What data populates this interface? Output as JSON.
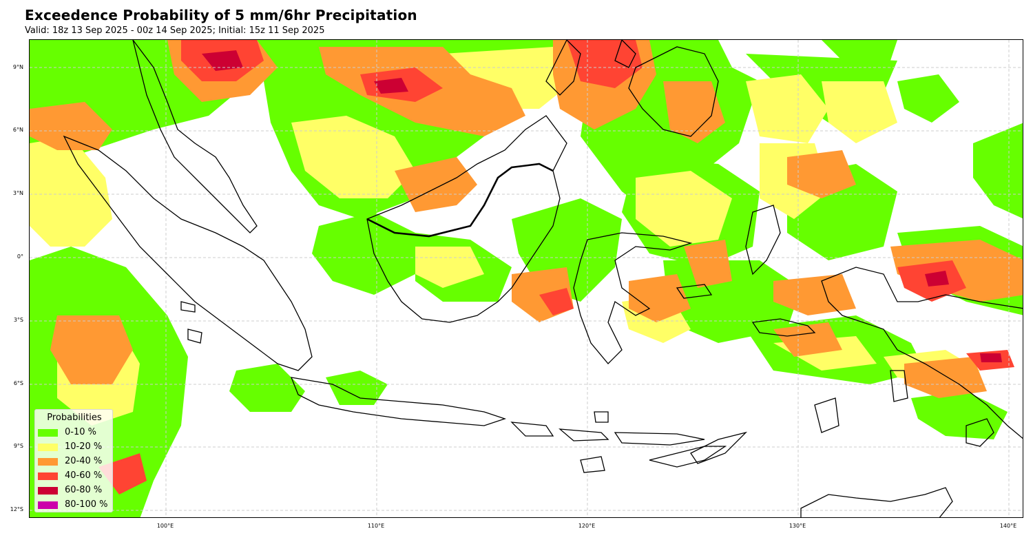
{
  "title": "Exceedence Probability of 5 mm/6hr Precipitation",
  "subtitle": "Valid: 18z 13 Sep 2025 - 00z 14 Sep 2025; Initial: 15z 11 Sep 2025",
  "map": {
    "lat_ticks": [
      "9°N",
      "6°N",
      "3°N",
      "0°",
      "3°S",
      "6°S",
      "9°S",
      "12°S"
    ],
    "lon_ticks": [
      "100°E",
      "110°E",
      "120°E",
      "130°E",
      "140°E"
    ],
    "gridlines": true,
    "region": "Maritime Continent / Indonesia"
  },
  "legend": {
    "title": "Probabilities",
    "placement": "lower-left",
    "items": [
      {
        "label": "0-10 %",
        "color": "#66ff00"
      },
      {
        "label": "10-20 %",
        "color": "#ffff66"
      },
      {
        "label": "20-40 %",
        "color": "#ff9933"
      },
      {
        "label": "40-60 %",
        "color": "#ff4433"
      },
      {
        "label": "60-80 %",
        "color": "#cc0033"
      },
      {
        "label": "80-100 %",
        "color": "#cc00aa"
      }
    ]
  }
}
